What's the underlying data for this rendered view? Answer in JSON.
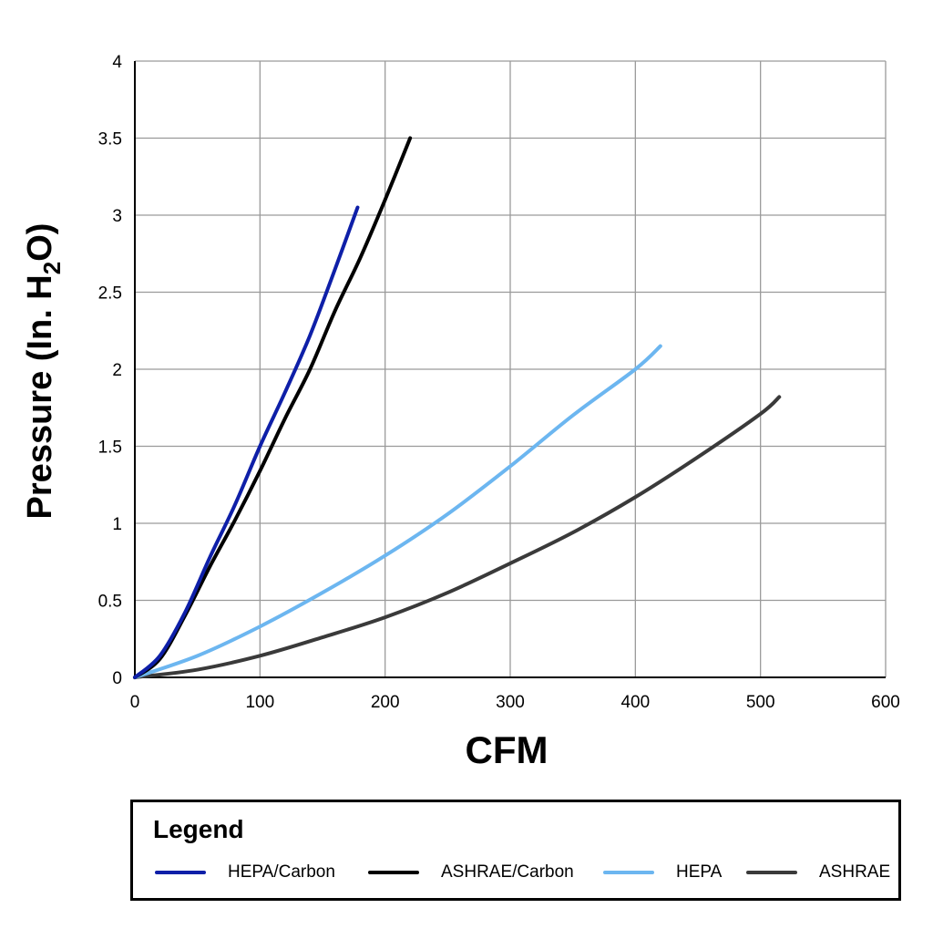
{
  "chart_data": {
    "type": "line",
    "title": "",
    "xlabel": "CFM",
    "ylabel_main": "Pressure (In. H",
    "ylabel_sub": "2",
    "ylabel_end": "O)",
    "xlim": [
      0,
      600
    ],
    "ylim": [
      0,
      4
    ],
    "xticks": [
      0,
      100,
      200,
      300,
      400,
      500,
      600
    ],
    "yticks": [
      0,
      0.5,
      1,
      1.5,
      2,
      2.5,
      3,
      3.5,
      4
    ],
    "xtick_labels": [
      "0",
      "100",
      "200",
      "300",
      "400",
      "500",
      "600"
    ],
    "ytick_labels": [
      "0",
      "0.5",
      "1",
      "1.5",
      "2",
      "2.5",
      "3",
      "3.5",
      "4"
    ],
    "grid": true,
    "legend_title": "Legend",
    "legend_position": "bottom",
    "series": [
      {
        "name": "HEPA/Carbon",
        "color": "#0e1fa8",
        "x": [
          0,
          20,
          40,
          60,
          80,
          100,
          120,
          140,
          160,
          178
        ],
        "y": [
          0,
          0.14,
          0.42,
          0.78,
          1.12,
          1.5,
          1.85,
          2.22,
          2.65,
          3.05
        ]
      },
      {
        "name": "ASHRAE/Carbon",
        "color": "#000000",
        "x": [
          0,
          20,
          40,
          60,
          80,
          100,
          120,
          140,
          160,
          180,
          200,
          220
        ],
        "y": [
          0,
          0.12,
          0.4,
          0.72,
          1.02,
          1.34,
          1.68,
          2.0,
          2.38,
          2.72,
          3.1,
          3.5
        ]
      },
      {
        "name": "HEPA",
        "color": "#6cb6f0",
        "x": [
          0,
          50,
          100,
          150,
          200,
          250,
          300,
          350,
          400,
          420
        ],
        "y": [
          0,
          0.14,
          0.33,
          0.55,
          0.79,
          1.06,
          1.37,
          1.7,
          2.0,
          2.15
        ]
      },
      {
        "name": "ASHRAE",
        "color": "#3a3a3a",
        "x": [
          0,
          50,
          100,
          150,
          200,
          250,
          300,
          350,
          400,
          450,
          500,
          515
        ],
        "y": [
          0,
          0.05,
          0.14,
          0.26,
          0.39,
          0.55,
          0.74,
          0.94,
          1.17,
          1.43,
          1.71,
          1.82
        ]
      }
    ]
  }
}
